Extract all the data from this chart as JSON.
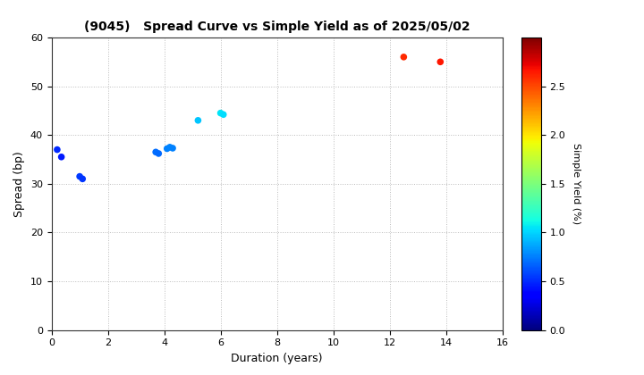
{
  "title": "(9045)   Spread Curve vs Simple Yield as of 2025/05/02",
  "xlabel": "Duration (years)",
  "ylabel": "Spread (bp)",
  "colorbar_label": "Simple Yield (%)",
  "xlim": [
    0,
    16
  ],
  "ylim": [
    0,
    60
  ],
  "xticks": [
    0,
    2,
    4,
    6,
    8,
    10,
    12,
    14,
    16
  ],
  "yticks": [
    0,
    10,
    20,
    30,
    40,
    50,
    60
  ],
  "points": [
    {
      "duration": 0.2,
      "spread": 37.0,
      "simple_yield": 0.5
    },
    {
      "duration": 0.35,
      "spread": 35.5,
      "simple_yield": 0.45
    },
    {
      "duration": 1.0,
      "spread": 31.5,
      "simple_yield": 0.55
    },
    {
      "duration": 1.1,
      "spread": 31.0,
      "simple_yield": 0.53
    },
    {
      "duration": 3.7,
      "spread": 36.5,
      "simple_yield": 0.7
    },
    {
      "duration": 3.8,
      "spread": 36.2,
      "simple_yield": 0.68
    },
    {
      "duration": 4.1,
      "spread": 37.2,
      "simple_yield": 0.75
    },
    {
      "duration": 4.2,
      "spread": 37.5,
      "simple_yield": 0.77
    },
    {
      "duration": 4.3,
      "spread": 37.3,
      "simple_yield": 0.76
    },
    {
      "duration": 5.2,
      "spread": 43.0,
      "simple_yield": 0.95
    },
    {
      "duration": 6.0,
      "spread": 44.5,
      "simple_yield": 1.05
    },
    {
      "duration": 6.1,
      "spread": 44.2,
      "simple_yield": 1.03
    },
    {
      "duration": 12.5,
      "spread": 56.0,
      "simple_yield": 2.6
    },
    {
      "duration": 13.8,
      "spread": 55.0,
      "simple_yield": 2.65
    }
  ],
  "vmin": 0.0,
  "vmax": 3.0,
  "colormap": "jet",
  "marker_size": 30,
  "background_color": "#ffffff",
  "grid_color": "#bbbbbb",
  "grid_style": "dotted",
  "title_fontsize": 10,
  "axis_fontsize": 9,
  "tick_fontsize": 8,
  "colorbar_tick_fontsize": 8,
  "colorbar_label_fontsize": 8
}
